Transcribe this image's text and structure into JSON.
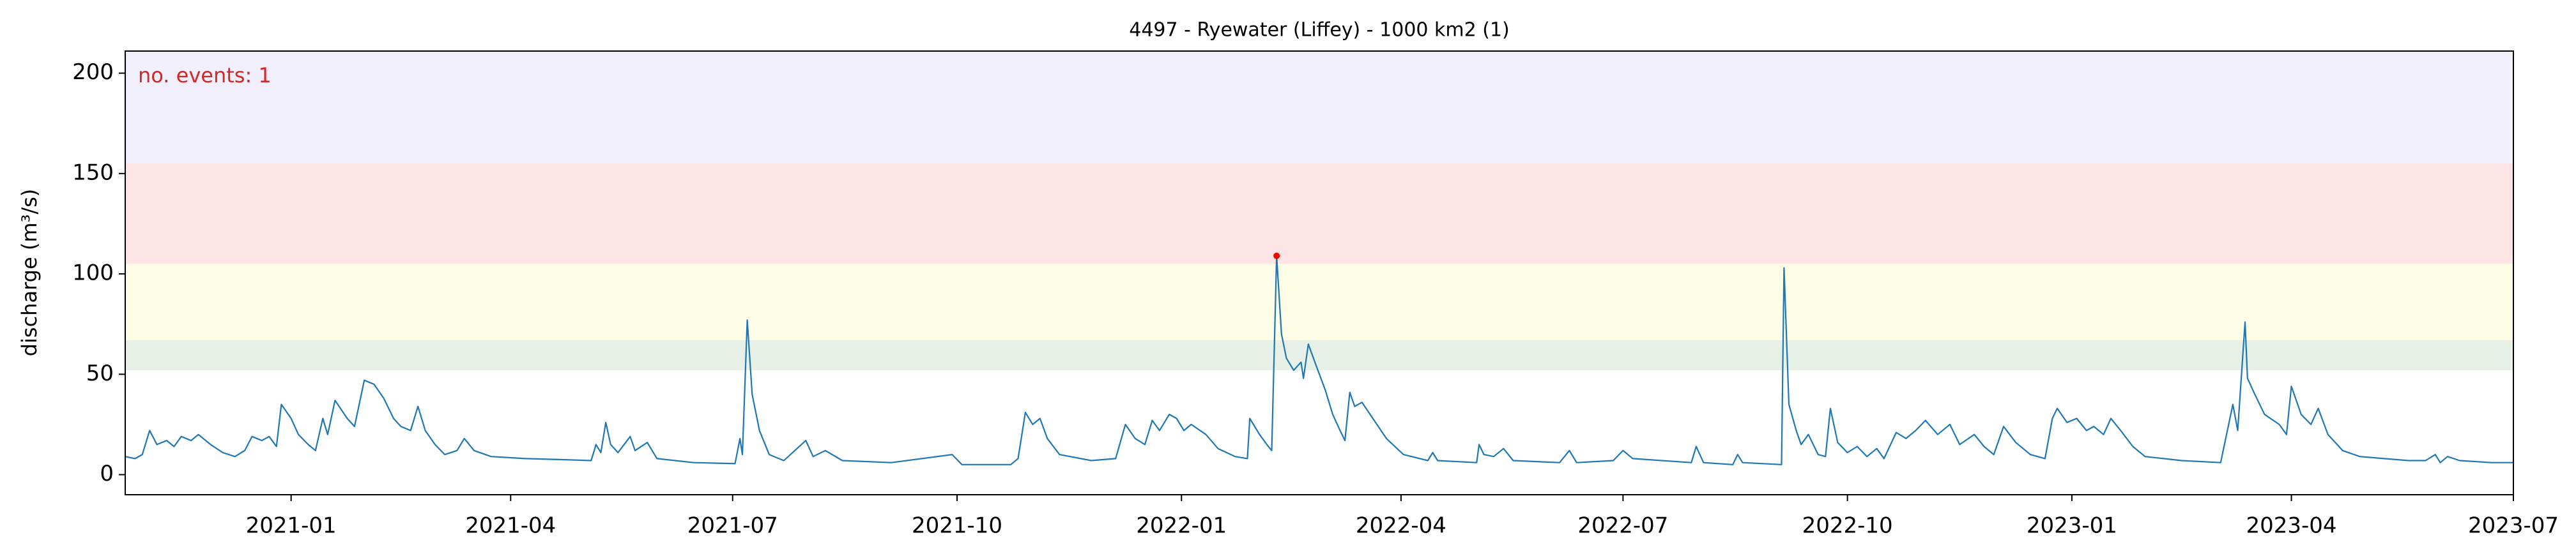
{
  "chart_data": {
    "type": "line",
    "title": "4497 - Ryewater (Liffey) - 1000 km2 (1)",
    "y_label": "discharge (m³/s)",
    "annotation": "no. events: 1",
    "annotation_color": "#d62728",
    "color": "#1f77b4",
    "event": {
      "x": "2022-02-09",
      "value": 109,
      "color": "#ff0000"
    },
    "bands": [
      {
        "from": 52,
        "to": 67,
        "color": "#e7f0e6"
      },
      {
        "from": 67,
        "to": 105,
        "color": "#fefde6"
      },
      {
        "from": 105,
        "to": 155,
        "color": "#fee4e4"
      },
      {
        "from": 155,
        "color": "#f1effb"
      }
    ],
    "xlim": [
      "2020-10-25",
      "2023-07-01"
    ],
    "xticks": [
      {
        "value": "2021-01-01",
        "label": "2021-01"
      },
      {
        "value": "2021-04-01",
        "label": "2021-04"
      },
      {
        "value": "2021-07-01",
        "label": "2021-07"
      },
      {
        "value": "2021-10-01",
        "label": "2021-10"
      },
      {
        "value": "2022-01-01",
        "label": "2022-01"
      },
      {
        "value": "2022-04-01",
        "label": "2022-04"
      },
      {
        "value": "2022-07-01",
        "label": "2022-07"
      },
      {
        "value": "2022-10-01",
        "label": "2022-10"
      },
      {
        "value": "2023-01-01",
        "label": "2023-01"
      },
      {
        "value": "2023-04-01",
        "label": "2023-04"
      },
      {
        "value": "2023-07-01",
        "label": "2023-07"
      }
    ],
    "ylim": [
      -10,
      211
    ],
    "yticks": [
      0,
      50,
      100,
      150,
      200
    ],
    "x": [
      "2020-10-25",
      "2020-10-29",
      "2020-11-01",
      "2020-11-04",
      "2020-11-07",
      "2020-11-11",
      "2020-11-14",
      "2020-11-17",
      "2020-11-21",
      "2020-11-24",
      "2020-11-29",
      "2020-12-04",
      "2020-12-09",
      "2020-12-13",
      "2020-12-16",
      "2020-12-20",
      "2020-12-23",
      "2020-12-26",
      "2020-12-28",
      "2021-01-01",
      "2021-01-04",
      "2021-01-08",
      "2021-01-11",
      "2021-01-14",
      "2021-01-16",
      "2021-01-19",
      "2021-01-24",
      "2021-01-27",
      "2021-01-31",
      "2021-02-04",
      "2021-02-08",
      "2021-02-12",
      "2021-02-15",
      "2021-02-19",
      "2021-02-22",
      "2021-02-25",
      "2021-03-01",
      "2021-03-05",
      "2021-03-10",
      "2021-03-13",
      "2021-03-17",
      "2021-03-24",
      "2021-04-07",
      "2021-04-22",
      "2021-05-04",
      "2021-05-06",
      "2021-05-08",
      "2021-05-10",
      "2021-05-12",
      "2021-05-15",
      "2021-05-20",
      "2021-05-22",
      "2021-05-27",
      "2021-05-31",
      "2021-06-15",
      "2021-07-02",
      "2021-07-04",
      "2021-07-05",
      "2021-07-07",
      "2021-07-09",
      "2021-07-12",
      "2021-07-16",
      "2021-07-22",
      "2021-07-31",
      "2021-08-03",
      "2021-08-08",
      "2021-08-15",
      "2021-09-04",
      "2021-09-29",
      "2021-10-03",
      "2021-10-23",
      "2021-10-26",
      "2021-10-29",
      "2021-11-01",
      "2021-11-04",
      "2021-11-07",
      "2021-11-12",
      "2021-11-25",
      "2021-12-05",
      "2021-12-09",
      "2021-12-13",
      "2021-12-17",
      "2021-12-20",
      "2021-12-23",
      "2021-12-27",
      "2021-12-30",
      "2022-01-02",
      "2022-01-05",
      "2022-01-11",
      "2022-01-16",
      "2022-01-23",
      "2022-01-28",
      "2022-01-29",
      "2022-02-02",
      "2022-02-05",
      "2022-02-07",
      "2022-02-09",
      "2022-02-11",
      "2022-02-13",
      "2022-02-16",
      "2022-02-19",
      "2022-02-20",
      "2022-02-22",
      "2022-02-25",
      "2022-03-01",
      "2022-03-04",
      "2022-03-07",
      "2022-03-09",
      "2022-03-11",
      "2022-03-13",
      "2022-03-16",
      "2022-03-21",
      "2022-03-26",
      "2022-04-02",
      "2022-04-12",
      "2022-04-14",
      "2022-04-16",
      "2022-05-02",
      "2022-05-03",
      "2022-05-05",
      "2022-05-09",
      "2022-05-13",
      "2022-05-17",
      "2022-06-05",
      "2022-06-09",
      "2022-06-12",
      "2022-06-27",
      "2022-07-01",
      "2022-07-05",
      "2022-07-29",
      "2022-07-31",
      "2022-08-03",
      "2022-08-15",
      "2022-08-17",
      "2022-08-19",
      "2022-09-04",
      "2022-09-05",
      "2022-09-07",
      "2022-09-10",
      "2022-09-12",
      "2022-09-15",
      "2022-09-19",
      "2022-09-22",
      "2022-09-24",
      "2022-09-27",
      "2022-10-01",
      "2022-10-05",
      "2022-10-09",
      "2022-10-13",
      "2022-10-16",
      "2022-10-21",
      "2022-10-25",
      "2022-10-29",
      "2022-11-02",
      "2022-11-07",
      "2022-11-12",
      "2022-11-16",
      "2022-11-22",
      "2022-11-26",
      "2022-11-30",
      "2022-12-04",
      "2022-12-09",
      "2022-12-15",
      "2022-12-21",
      "2022-12-24",
      "2022-12-26",
      "2022-12-30",
      "2023-01-03",
      "2023-01-07",
      "2023-01-10",
      "2023-01-14",
      "2023-01-17",
      "2023-01-21",
      "2023-01-26",
      "2023-01-31",
      "2023-02-15",
      "2023-03-03",
      "2023-03-08",
      "2023-03-10",
      "2023-03-13",
      "2023-03-14",
      "2023-03-17",
      "2023-03-21",
      "2023-03-27",
      "2023-03-30",
      "2023-04-01",
      "2023-04-05",
      "2023-04-09",
      "2023-04-12",
      "2023-04-16",
      "2023-04-22",
      "2023-04-29",
      "2023-05-09",
      "2023-05-19",
      "2023-05-26",
      "2023-05-30",
      "2023-06-01",
      "2023-06-04",
      "2023-06-09",
      "2023-06-22",
      "2023-07-01"
    ],
    "values": [
      9,
      8,
      10,
      22,
      15,
      17,
      14,
      19,
      17,
      20,
      15,
      11,
      9,
      12,
      19,
      17,
      19,
      14,
      35,
      28,
      20,
      15,
      12,
      28,
      20,
      37,
      28,
      24,
      47,
      45,
      38,
      28,
      24,
      22,
      34,
      22,
      15,
      10,
      12,
      18,
      12,
      9,
      8,
      7.5,
      7,
      15,
      11,
      26,
      15,
      11,
      19,
      12,
      16,
      8,
      6,
      5.5,
      18,
      10,
      77,
      40,
      22,
      10,
      7,
      17,
      9,
      12,
      7,
      6,
      10,
      5,
      5,
      8,
      31,
      25,
      28,
      18,
      10,
      7,
      8,
      25,
      18,
      15,
      27,
      22,
      30,
      28,
      22,
      25,
      20,
      13,
      9,
      8,
      28,
      20,
      15,
      12,
      109,
      70,
      58,
      52,
      56,
      48,
      65,
      55,
      42,
      30,
      22,
      17,
      41,
      34,
      36,
      27,
      18,
      10,
      7,
      11,
      7,
      6,
      15,
      10,
      9,
      13,
      7,
      6,
      12,
      6,
      7,
      12,
      8,
      6,
      14,
      6,
      5,
      10,
      6,
      5,
      103,
      35,
      22,
      15,
      20,
      10,
      9,
      33,
      16,
      11,
      14,
      9,
      13,
      8,
      21,
      18,
      22,
      27,
      20,
      25,
      15,
      20,
      14,
      10,
      24,
      16,
      10,
      8,
      28,
      33,
      26,
      28,
      22,
      24,
      20,
      28,
      22,
      14,
      9,
      7,
      6,
      35,
      22,
      76,
      48,
      40,
      30,
      25,
      20,
      44,
      30,
      25,
      33,
      20,
      12,
      9,
      8,
      7,
      7,
      10,
      6,
      9,
      7,
      6,
      6
    ]
  }
}
